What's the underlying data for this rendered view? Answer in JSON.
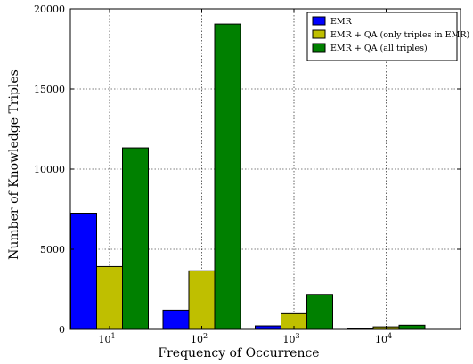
{
  "chart_data": {
    "type": "bar",
    "title": "",
    "xlabel": "Frequency of Occurrence",
    "ylabel": "Number of Knowledge Triples",
    "categories": [
      {
        "base": "10",
        "exp": "1"
      },
      {
        "base": "10",
        "exp": "2"
      },
      {
        "base": "10",
        "exp": "3"
      },
      {
        "base": "10",
        "exp": "4"
      }
    ],
    "series": [
      {
        "name": "EMR",
        "color": "#0000ff",
        "values": [
          7250,
          1200,
          220,
          50
        ]
      },
      {
        "name": "EMR + QA (only triples in EMR)",
        "color": "#bfbf00",
        "values": [
          3920,
          3650,
          980,
          160
        ]
      },
      {
        "name": "EMR + QA (all triples)",
        "color": "#008000",
        "values": [
          11330,
          19050,
          2180,
          260
        ]
      }
    ],
    "ylim": [
      0,
      20000
    ],
    "yticks": [
      0,
      5000,
      10000,
      15000,
      20000
    ],
    "grid": true,
    "legend_position": "top-right"
  }
}
